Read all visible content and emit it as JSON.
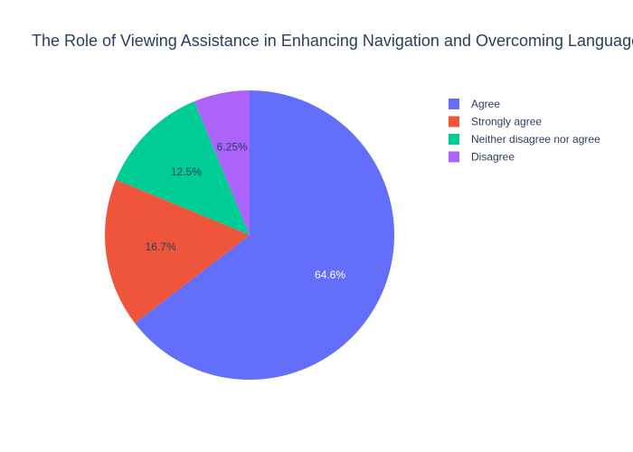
{
  "chart_data": {
    "type": "pie",
    "title": "The Role of Viewing Assistance in Enhancing Navigation and Overcoming Language Barriers",
    "categories": [
      "Agree",
      "Strongly agree",
      "Neither disagree nor agree",
      "Disagree"
    ],
    "values": [
      64.6,
      16.7,
      12.5,
      6.25
    ],
    "labels": [
      "64.6%",
      "16.7%",
      "12.5%",
      "6.25%"
    ],
    "colors": [
      "#636efa",
      "#EF553B",
      "#00cc96",
      "#ab63fa"
    ],
    "label_colors": [
      "#ffffff",
      "#2a3f5f",
      "#2a3f5f",
      "#2a3f5f"
    ],
    "legend_placement": "top-right",
    "direction": "clockwise",
    "start": "top"
  }
}
